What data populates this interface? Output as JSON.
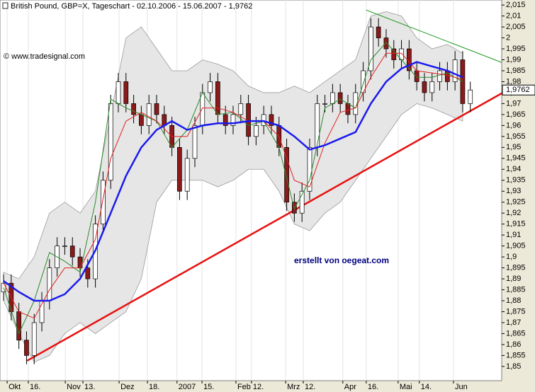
{
  "chart_data": {
    "type": "candlestick",
    "title": "British Pound, GBP=X, Tageschart - 02.10.2006 - 15.06.2007 - 1,9762",
    "annotations": [
      "© www.tradesignal.com",
      "erstellt von oegeat.com"
    ],
    "up_color": "#ffffff",
    "down_color": "#8b1a1a",
    "x": [
      0,
      3,
      6,
      9,
      12,
      15,
      18,
      21,
      24,
      27,
      30,
      33,
      36,
      39,
      42,
      45,
      48,
      51,
      54,
      57,
      60,
      63,
      66,
      69,
      72,
      75,
      78,
      81,
      84,
      87,
      90,
      93,
      96,
      99,
      102,
      105,
      108,
      111,
      114,
      117,
      120,
      123,
      126,
      129,
      132,
      135,
      138,
      141,
      144,
      147,
      150,
      153,
      156,
      159,
      162,
      165,
      168,
      171,
      174,
      177,
      180,
      183
    ],
    "open": [
      1.884,
      1.888,
      1.875,
      1.862,
      1.855,
      1.87,
      1.88,
      1.895,
      1.905,
      1.905,
      1.9,
      1.895,
      1.89,
      1.915,
      1.935,
      1.97,
      1.98,
      1.97,
      1.965,
      1.96,
      1.97,
      1.965,
      1.96,
      1.95,
      1.93,
      1.945,
      1.96,
      1.975,
      1.98,
      1.965,
      1.96,
      1.965,
      1.97,
      1.955,
      1.96,
      1.965,
      1.96,
      1.95,
      1.925,
      1.92,
      1.93,
      1.95,
      1.97,
      1.97,
      1.975,
      1.97,
      1.965,
      1.975,
      1.985,
      2.005,
      2.0,
      1.995,
      1.99,
      1.995,
      1.985,
      1.98,
      1.975,
      1.98,
      1.985,
      1.98,
      1.99,
      1.97
    ],
    "high": [
      1.892,
      1.892,
      1.879,
      1.866,
      1.874,
      1.884,
      1.899,
      1.909,
      1.909,
      1.909,
      1.904,
      1.899,
      1.919,
      1.939,
      1.974,
      1.984,
      1.984,
      1.974,
      1.969,
      1.974,
      1.974,
      1.969,
      1.964,
      1.954,
      1.949,
      1.964,
      1.979,
      1.984,
      1.984,
      1.969,
      1.969,
      1.974,
      1.974,
      1.964,
      1.969,
      1.969,
      1.964,
      1.954,
      1.929,
      1.934,
      1.954,
      1.974,
      1.974,
      1.979,
      1.979,
      1.974,
      1.979,
      1.989,
      2.009,
      2.009,
      2.004,
      1.999,
      1.999,
      1.999,
      1.989,
      1.984,
      1.984,
      1.989,
      1.989,
      1.994,
      1.994,
      1.98
    ],
    "low": [
      1.88,
      1.871,
      1.858,
      1.851,
      1.851,
      1.866,
      1.876,
      1.891,
      1.901,
      1.896,
      1.891,
      1.886,
      1.886,
      1.911,
      1.931,
      1.966,
      1.966,
      1.961,
      1.956,
      1.956,
      1.961,
      1.956,
      1.946,
      1.926,
      1.926,
      1.941,
      1.956,
      1.971,
      1.961,
      1.956,
      1.956,
      1.961,
      1.951,
      1.951,
      1.956,
      1.956,
      1.946,
      1.921,
      1.916,
      1.916,
      1.926,
      1.946,
      1.966,
      1.966,
      1.966,
      1.961,
      1.961,
      1.971,
      1.981,
      1.996,
      1.991,
      1.986,
      1.986,
      1.981,
      1.976,
      1.971,
      1.971,
      1.976,
      1.976,
      1.976,
      1.966,
      1.966
    ],
    "close": [
      1.888,
      1.875,
      1.862,
      1.855,
      1.87,
      1.88,
      1.895,
      1.905,
      1.905,
      1.9,
      1.895,
      1.89,
      1.915,
      1.935,
      1.97,
      1.98,
      1.97,
      1.965,
      1.96,
      1.97,
      1.965,
      1.96,
      1.95,
      1.93,
      1.945,
      1.96,
      1.975,
      1.98,
      1.965,
      1.96,
      1.965,
      1.97,
      1.955,
      1.96,
      1.965,
      1.96,
      1.95,
      1.925,
      1.92,
      1.93,
      1.95,
      1.97,
      1.97,
      1.975,
      1.97,
      1.965,
      1.975,
      1.985,
      2.005,
      2.0,
      1.995,
      1.99,
      1.995,
      1.985,
      1.98,
      1.975,
      1.98,
      1.985,
      1.98,
      1.99,
      1.97,
      1.9762
    ],
    "band": {
      "color": "#e6e6e6",
      "line_color": "#9a9a9a",
      "x": [
        0,
        6,
        12,
        18,
        24,
        30,
        36,
        42,
        48,
        54,
        60,
        66,
        72,
        78,
        84,
        90,
        96,
        102,
        108,
        114,
        120,
        126,
        132,
        138,
        144,
        150,
        156,
        162,
        168,
        174,
        180
      ],
      "upper": [
        1.893,
        1.89,
        1.9,
        1.92,
        1.925,
        1.92,
        1.93,
        1.965,
        2.0,
        2.005,
        1.995,
        1.985,
        1.985,
        1.99,
        1.988,
        1.985,
        1.978,
        1.975,
        1.975,
        1.978,
        1.975,
        1.98,
        1.985,
        1.99,
        2.01,
        2.012,
        2.01,
        2.0,
        1.995,
        1.997,
        1.993
      ],
      "lower": [
        1.88,
        1.865,
        1.852,
        1.855,
        1.865,
        1.87,
        1.865,
        1.87,
        1.875,
        1.89,
        1.925,
        1.935,
        1.935,
        1.935,
        1.932,
        1.935,
        1.94,
        1.94,
        1.93,
        1.915,
        1.912,
        1.92,
        1.925,
        1.935,
        1.945,
        1.955,
        1.965,
        1.97,
        1.968,
        1.965,
        1.962
      ]
    },
    "series": [
      {
        "color": "#2a8a2a",
        "width": 1,
        "x": [
          0,
          6,
          12,
          18,
          24,
          30,
          36,
          42,
          48,
          54,
          60,
          66,
          72,
          78,
          84,
          90,
          96,
          102,
          108,
          114,
          120,
          126,
          132,
          138,
          144,
          150,
          156,
          162,
          168,
          174,
          180
        ],
        "values": [
          1.886,
          1.865,
          1.88,
          1.902,
          1.898,
          1.893,
          1.925,
          1.972,
          1.968,
          1.965,
          1.962,
          1.95,
          1.958,
          1.975,
          1.965,
          1.966,
          1.96,
          1.962,
          1.95,
          1.922,
          1.935,
          1.968,
          1.972,
          1.968,
          1.99,
          1.998,
          1.99,
          1.982,
          1.982,
          1.984,
          1.98
        ]
      },
      {
        "color": "#e02020",
        "width": 1,
        "x": [
          0,
          6,
          12,
          18,
          24,
          30,
          36,
          42,
          48,
          54,
          60,
          66,
          72,
          78,
          84,
          90,
          96,
          102,
          108,
          114,
          120,
          126,
          132,
          138,
          144,
          150,
          156,
          162,
          168,
          174,
          180
        ],
        "values": [
          1.888,
          1.875,
          1.872,
          1.885,
          1.895,
          1.895,
          1.908,
          1.945,
          1.962,
          1.966,
          1.962,
          1.955,
          1.955,
          1.968,
          1.968,
          1.966,
          1.962,
          1.962,
          1.955,
          1.935,
          1.932,
          1.952,
          1.966,
          1.968,
          1.982,
          1.993,
          1.993,
          1.985,
          1.984,
          1.983,
          1.981
        ]
      },
      {
        "color": "#1a1aee",
        "width": 2.5,
        "x": [
          0,
          6,
          12,
          18,
          24,
          30,
          36,
          42,
          48,
          54,
          60,
          66,
          72,
          78,
          84,
          90,
          96,
          102,
          108,
          114,
          120,
          126,
          132,
          138,
          144,
          150,
          156,
          162,
          168,
          174,
          180
        ],
        "values": [
          1.889,
          1.884,
          1.88,
          1.88,
          1.883,
          1.89,
          1.903,
          1.92,
          1.937,
          1.95,
          1.958,
          1.962,
          1.958,
          1.96,
          1.961,
          1.961,
          1.962,
          1.962,
          1.96,
          1.955,
          1.949,
          1.951,
          1.954,
          1.957,
          1.97,
          1.98,
          1.986,
          1.989,
          1.987,
          1.985,
          1.982
        ]
      }
    ],
    "trendlines": [
      {
        "color": "#e81010",
        "width": 2.5,
        "x": [
          9.2,
          195.3
        ],
        "values": [
          1.8526,
          1.9747
        ]
      },
      {
        "color": "#1f9a1f",
        "width": 1,
        "x": [
          142.2,
          195.3
        ],
        "values": [
          2.0127,
          1.9888
        ]
      }
    ],
    "last_label": {
      "value": 1.9762,
      "label": "1,9762"
    },
    "xlim": [
      -1.4,
      195.3
    ],
    "ylim": [
      1.8435,
      2.0173
    ],
    "grid": true,
    "xticks": [
      {
        "value": 1.4,
        "label": "Okt"
      },
      {
        "value": 9.7,
        "label": "16."
      },
      {
        "value": 24.2,
        "label": "Nov"
      },
      {
        "value": 31.1,
        "label": "13."
      },
      {
        "value": 45.3,
        "label": "Dez"
      },
      {
        "value": 56.4,
        "label": "18."
      },
      {
        "value": 68,
        "label": "2007"
      },
      {
        "value": 77.8,
        "label": "15."
      },
      {
        "value": 91.1,
        "label": "Feb"
      },
      {
        "value": 97.2,
        "label": "12."
      },
      {
        "value": 110.6,
        "label": "Mrz"
      },
      {
        "value": 117.5,
        "label": "12."
      },
      {
        "value": 133,
        "label": "Apr"
      },
      {
        "value": 142.2,
        "label": "16."
      },
      {
        "value": 154.7,
        "label": "Mai"
      },
      {
        "value": 163,
        "label": "14."
      },
      {
        "value": 176.4,
        "label": "Jun"
      }
    ],
    "yticks": [
      {
        "value": 1.85,
        "label": "1,85"
      },
      {
        "value": 1.855,
        "label": "1,855"
      },
      {
        "value": 1.86,
        "label": "1,86"
      },
      {
        "value": 1.865,
        "label": "1,865"
      },
      {
        "value": 1.87,
        "label": "1,87"
      },
      {
        "value": 1.875,
        "label": "1,875"
      },
      {
        "value": 1.88,
        "label": "1,88"
      },
      {
        "value": 1.885,
        "label": "1,885"
      },
      {
        "value": 1.89,
        "label": "1,89"
      },
      {
        "value": 1.895,
        "label": "1,895"
      },
      {
        "value": 1.9,
        "label": "1,9"
      },
      {
        "value": 1.905,
        "label": "1,905"
      },
      {
        "value": 1.91,
        "label": "1,91"
      },
      {
        "value": 1.915,
        "label": "1,915"
      },
      {
        "value": 1.92,
        "label": "1,92"
      },
      {
        "value": 1.925,
        "label": "1,925"
      },
      {
        "value": 1.93,
        "label": "1,93"
      },
      {
        "value": 1.935,
        "label": "1,935"
      },
      {
        "value": 1.94,
        "label": "1,94"
      },
      {
        "value": 1.945,
        "label": "1,945"
      },
      {
        "value": 1.95,
        "label": "1,95"
      },
      {
        "value": 1.955,
        "label": "1,955"
      },
      {
        "value": 1.96,
        "label": "1,96"
      },
      {
        "value": 1.965,
        "label": "1,965"
      },
      {
        "value": 1.97,
        "label": "1,97"
      },
      {
        "value": 1.975,
        "label": "1,975"
      },
      {
        "value": 1.98,
        "label": "1,98"
      },
      {
        "value": 1.985,
        "label": "1,985"
      },
      {
        "value": 1.99,
        "label": "1,99"
      },
      {
        "value": 1.995,
        "label": "1,995"
      },
      2,
      {
        "value": 2.005,
        "label": "2,005"
      },
      {
        "value": 2.01,
        "label": "2,01"
      },
      {
        "value": 2.015,
        "label": "2,015"
      }
    ]
  }
}
